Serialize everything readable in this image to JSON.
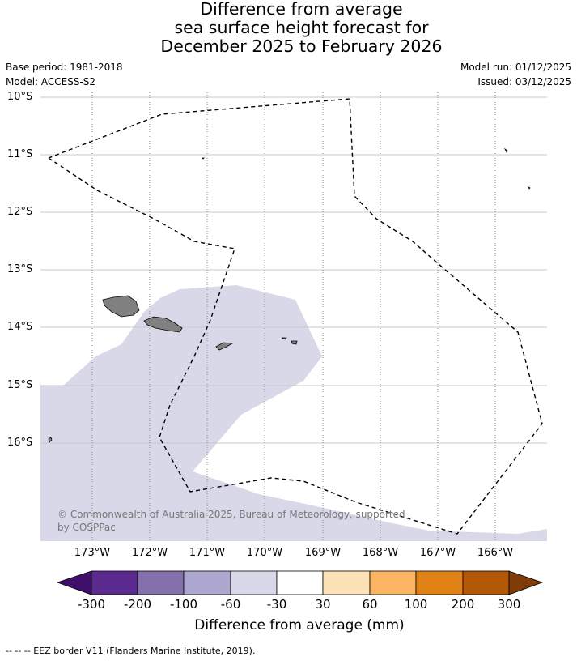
{
  "title": {
    "line1": "Difference from average",
    "line2": "sea surface height forecast for",
    "line3": "December 2025 to February 2026"
  },
  "meta": {
    "base_period": "Base period: 1981-2018",
    "model": "Model: ACCESS-S2",
    "model_run": "Model run: 01/12/2025",
    "issued": "Issued: 03/12/2025"
  },
  "map": {
    "lat_labels": [
      "10°S",
      "11°S",
      "12°S",
      "13°S",
      "14°S",
      "15°S",
      "16°S"
    ],
    "lon_labels": [
      "173°W",
      "172°W",
      "171°W",
      "170°W",
      "169°W",
      "168°W",
      "167°W",
      "166°W"
    ],
    "anomaly_category": "-60 to -30",
    "anomaly_color": "#d8d8e9",
    "land_color": "#808080",
    "copyright": "© Commonwealth of Australia 2025, Bureau of Meteorology, supported by COSPPac"
  },
  "colorbar": {
    "title": "Difference from average (mm)",
    "ticks": [
      "-300",
      "-200",
      "-100",
      "-60",
      "-30",
      "30",
      "60",
      "100",
      "200",
      "300"
    ],
    "colors": [
      "#3f0f6b",
      "#5b2a8e",
      "#8470ad",
      "#aea8d1",
      "#d8d8e9",
      "#ffffff",
      "#fde2b8",
      "#fbb562",
      "#e18217",
      "#b35807",
      "#7f3b08"
    ]
  },
  "footnote": "--  --  -- EEZ border V11 (Flanders Marine Institute, 2019)."
}
